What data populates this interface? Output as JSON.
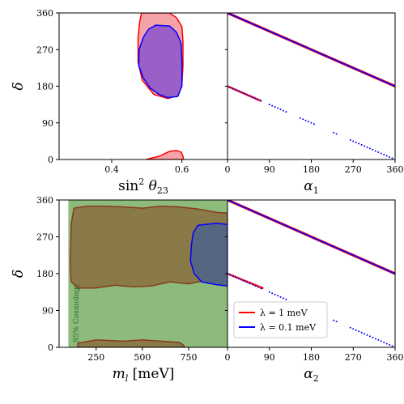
{
  "colors": {
    "red": "#ff0000",
    "red_fill": "#f4a4a8",
    "blue": "#0000ff",
    "purple_fill": "#9b5fc8",
    "green_fill": "#8cbb7c",
    "olive_fill": "#8a7a48",
    "slate_fill": "#556680",
    "brown_edge": "#8b3a1e"
  },
  "chart_data": [
    {
      "panel": "top-left",
      "type": "area",
      "xlabel": "sin² θ23",
      "ylabel": "δ",
      "xlim": [
        0.25,
        0.73
      ],
      "ylim": [
        0,
        360
      ],
      "xticks": [
        "0.4",
        "0.6"
      ],
      "yticks": [
        "0",
        "90",
        "180",
        "270",
        "360"
      ],
      "series": [
        {
          "name": "λ = 1 meV",
          "color": "red",
          "regions": [
            {
              "points": [
                [
                  0.485,
                  360
                ],
                [
                  0.565,
                  360
                ],
                [
                  0.585,
                  348
                ],
                [
                  0.6,
                  326
                ],
                [
                  0.603,
                  290
                ],
                [
                  0.603,
                  230
                ],
                [
                  0.6,
                  185
                ],
                [
                  0.59,
                  158
                ],
                [
                  0.56,
                  150
                ],
                [
                  0.52,
                  160
                ],
                [
                  0.487,
                  195
                ],
                [
                  0.475,
                  240
                ],
                [
                  0.475,
                  300
                ],
                [
                  0.48,
                  340
                ]
              ]
            },
            {
              "points": [
                [
                  0.497,
                  0
                ],
                [
                  0.535,
                  8
                ],
                [
                  0.565,
                  20
                ],
                [
                  0.585,
                  22
                ],
                [
                  0.598,
                  18
                ],
                [
                  0.603,
                  8
                ],
                [
                  0.605,
                  0
                ]
              ]
            }
          ]
        },
        {
          "name": "λ = 0.1 meV",
          "color": "blue",
          "regions": [
            {
              "points": [
                [
                  0.525,
                  330
                ],
                [
                  0.565,
                  328
                ],
                [
                  0.585,
                  312
                ],
                [
                  0.598,
                  285
                ],
                [
                  0.6,
                  240
                ],
                [
                  0.6,
                  180
                ],
                [
                  0.588,
                  155
                ],
                [
                  0.56,
                  152
                ],
                [
                  0.535,
                  160
                ],
                [
                  0.51,
                  175
                ],
                [
                  0.49,
                  200
                ],
                [
                  0.477,
                  230
                ],
                [
                  0.478,
                  270
                ],
                [
                  0.49,
                  300
                ],
                [
                  0.505,
                  320
                ]
              ]
            }
          ]
        }
      ]
    },
    {
      "panel": "top-right",
      "type": "scatter",
      "xlabel": "α1",
      "ylabel": "",
      "xlim": [
        0,
        360
      ],
      "ylim": [
        0,
        360
      ],
      "xticks": [
        "0",
        "90",
        "180",
        "270",
        "360"
      ],
      "series": [
        {
          "name": "λ = 1 meV",
          "color": "red",
          "segments": [
            [
              [
                0,
                360
              ],
              [
                360,
                180
              ]
            ],
            [
              [
                0,
                180
              ],
              [
                70,
                145
              ]
            ]
          ]
        },
        {
          "name": "λ = 0.1 meV",
          "color": "blue",
          "segments": [
            [
              [
                0,
                360
              ],
              [
                360,
                180
              ]
            ],
            [
              [
                0,
                180
              ],
              [
                360,
                0
              ]
            ]
          ]
        }
      ]
    },
    {
      "panel": "bottom-left",
      "type": "area",
      "xlabel": "m_l [meV]",
      "ylabel": "δ",
      "xlim": [
        50,
        960
      ],
      "ylim": [
        0,
        360
      ],
      "xticks": [
        "250",
        "500",
        "750"
      ],
      "yticks": [
        "0",
        "90",
        "180",
        "270",
        "360"
      ],
      "annotation": "95% Cosmology",
      "cosmology_xmin": 100,
      "series": [
        {
          "name": "λ = 1 meV",
          "color": "olive",
          "regions": [
            {
              "points": [
                [
                  130,
                  340
                ],
                [
                  200,
                  345
                ],
                [
                  300,
                  345
                ],
                [
                  400,
                  343
                ],
                [
                  500,
                  340
                ],
                [
                  600,
                  345
                ],
                [
                  700,
                  343
                ],
                [
                  800,
                  338
                ],
                [
                  900,
                  330
                ],
                [
                  960,
                  328
                ],
                [
                  960,
                  270
                ],
                [
                  960,
                  170
                ],
                [
                  850,
                  165
                ],
                [
                  750,
                  155
                ],
                [
                  650,
                  160
                ],
                [
                  550,
                  150
                ],
                [
                  450,
                  148
                ],
                [
                  350,
                  152
                ],
                [
                  250,
                  145
                ],
                [
                  150,
                  145
                ],
                [
                  115,
                  160
                ],
                [
                  110,
                  200
                ],
                [
                  113,
                  260
                ],
                [
                  115,
                  300
                ]
              ]
            },
            {
              "points": [
                [
                  150,
                  0
                ],
                [
                  150,
                  10
                ],
                [
                  250,
                  18
                ],
                [
                  400,
                  15
                ],
                [
                  500,
                  18
                ],
                [
                  600,
                  15
                ],
                [
                  700,
                  12
                ],
                [
                  720,
                  6
                ],
                [
                  730,
                  0
                ]
              ]
            }
          ]
        },
        {
          "name": "λ = 0.1 meV",
          "color": "slate",
          "regions": [
            {
              "points": [
                [
                  800,
                  298
                ],
                [
                  900,
                  303
                ],
                [
                  960,
                  300
                ],
                [
                  960,
                  150
                ],
                [
                  900,
                  153
                ],
                [
                  820,
                  160
                ],
                [
                  780,
                  180
                ],
                [
                  760,
                  210
                ],
                [
                  765,
                  250
                ],
                [
                  775,
                  280
                ]
              ]
            }
          ]
        }
      ]
    },
    {
      "panel": "bottom-right",
      "type": "scatter",
      "xlabel": "α2",
      "ylabel": "",
      "xlim": [
        0,
        360
      ],
      "ylim": [
        0,
        360
      ],
      "xticks": [
        "0",
        "90",
        "180",
        "270",
        "360"
      ],
      "legend": {
        "placement": "lower-left",
        "entries": [
          "λ = 1 meV",
          "λ = 0.1 meV"
        ]
      },
      "series": [
        {
          "name": "λ = 1 meV",
          "color": "red",
          "segments": [
            [
              [
                0,
                360
              ],
              [
                360,
                180
              ]
            ],
            [
              [
                0,
                180
              ],
              [
                75,
                145
              ]
            ]
          ]
        },
        {
          "name": "λ = 0.1 meV",
          "color": "blue",
          "segments": [
            [
              [
                0,
                360
              ],
              [
                360,
                180
              ]
            ],
            [
              [
                0,
                180
              ],
              [
                360,
                0
              ]
            ]
          ]
        }
      ]
    }
  ]
}
